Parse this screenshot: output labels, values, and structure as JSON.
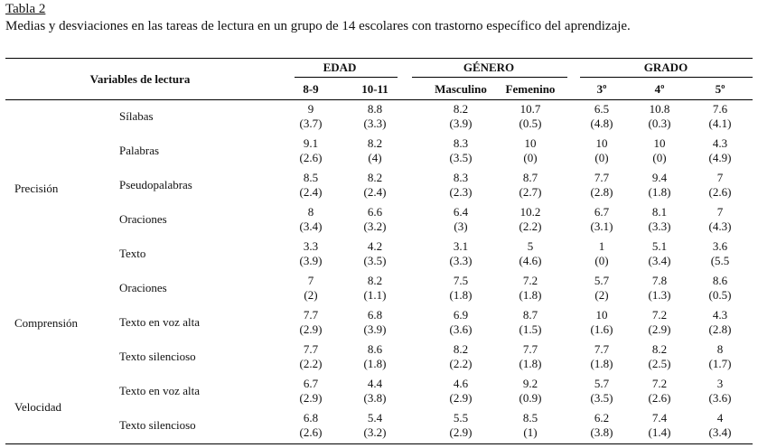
{
  "caption": {
    "label": "Tabla 2",
    "text": "Medias y desviaciones en las tareas de lectura en un grupo de 14 escolares con trastorno específico del aprendizaje."
  },
  "header": {
    "variables_label": "Variables de lectura",
    "groups": [
      "EDAD",
      "GÉNERO",
      "GRADO"
    ],
    "columns": [
      "8-9",
      "10-11",
      "Masculino",
      "Femenino",
      "3º",
      "4º",
      "5º"
    ]
  },
  "categories": [
    "Precisión",
    "Comprensión",
    "Velocidad"
  ],
  "rows": [
    {
      "label": "Sílabas",
      "cells": [
        [
          "9",
          "(3.7)"
        ],
        [
          "8.8",
          "(3.3)"
        ],
        [
          "8.2",
          "(3.9)"
        ],
        [
          "10.7",
          "(0.5)"
        ],
        [
          "6.5",
          "(4.8)"
        ],
        [
          "10.8",
          "(0.3)"
        ],
        [
          "7.6",
          "(4.1)"
        ]
      ]
    },
    {
      "label": "Palabras",
      "cells": [
        [
          "9.1",
          "(2.6)"
        ],
        [
          "8.2",
          "(4)"
        ],
        [
          "8.3",
          "(3.5)"
        ],
        [
          "10",
          "(0)"
        ],
        [
          "10",
          "(0)"
        ],
        [
          "10",
          "(0)"
        ],
        [
          "4.3",
          "(4.9)"
        ]
      ]
    },
    {
      "label": "Pseudopalabras",
      "cells": [
        [
          "8.5",
          "(2.4)"
        ],
        [
          "8.2",
          "(2.4)"
        ],
        [
          "8.3",
          "(2.3)"
        ],
        [
          "8.7",
          "(2.7)"
        ],
        [
          "7.7",
          "(2.8)"
        ],
        [
          "9.4",
          "(1.8)"
        ],
        [
          "7",
          "(2.6)"
        ]
      ]
    },
    {
      "label": "Oraciones",
      "cells": [
        [
          "8",
          "(3.4)"
        ],
        [
          "6.6",
          "(3.2)"
        ],
        [
          "6.4",
          "(3)"
        ],
        [
          "10.2",
          "(2.2)"
        ],
        [
          "6.7",
          "(3.1)"
        ],
        [
          "8.1",
          "(3.3)"
        ],
        [
          "7",
          "(4.3)"
        ]
      ]
    },
    {
      "label": "Texto",
      "cells": [
        [
          "3.3",
          "(3.9)"
        ],
        [
          "4.2",
          "(3.5)"
        ],
        [
          "3.1",
          "(3.3)"
        ],
        [
          "5",
          "(4.6)"
        ],
        [
          "1",
          "(0)"
        ],
        [
          "5.1",
          "(3.4)"
        ],
        [
          "3.6",
          "(5.5"
        ]
      ]
    },
    {
      "label": "Oraciones",
      "cells": [
        [
          "7",
          "(2)"
        ],
        [
          "8.2",
          "(1.1)"
        ],
        [
          "7.5",
          "(1.8)"
        ],
        [
          "7.2",
          "(1.8)"
        ],
        [
          "5.7",
          "(2)"
        ],
        [
          "7.8",
          "(1.3)"
        ],
        [
          "8.6",
          "(0.5)"
        ]
      ]
    },
    {
      "label": "Texto en voz alta",
      "cells": [
        [
          "7.7",
          "(2.9)"
        ],
        [
          "6.8",
          "(3.9)"
        ],
        [
          "6.9",
          "(3.6)"
        ],
        [
          "8.7",
          "(1.5)"
        ],
        [
          "10",
          "(1.6)"
        ],
        [
          "7.2",
          "(2.9)"
        ],
        [
          "4.3",
          "(2.8)"
        ]
      ]
    },
    {
      "label": "Texto silencioso",
      "cells": [
        [
          "7.7",
          "(2.2)"
        ],
        [
          "8.6",
          "(1.8)"
        ],
        [
          "8.2",
          "(2.2)"
        ],
        [
          "7.7",
          "(1.8)"
        ],
        [
          "7.7",
          "(1.8)"
        ],
        [
          "8.2",
          "(2.5)"
        ],
        [
          "8",
          "(1.7)"
        ]
      ]
    },
    {
      "label": "Texto en voz alta",
      "cells": [
        [
          "6.7",
          "(2.9)"
        ],
        [
          "4.4",
          "(3.8)"
        ],
        [
          "4.6",
          "(2.9)"
        ],
        [
          "9.2",
          "(0.9)"
        ],
        [
          "5.7",
          "(3.5)"
        ],
        [
          "7.2",
          "(2.6)"
        ],
        [
          "3",
          "(3.6)"
        ]
      ]
    },
    {
      "label": "Texto silencioso",
      "cells": [
        [
          "6.8",
          "(2.6)"
        ],
        [
          "5.4",
          "(3.2)"
        ],
        [
          "5.5",
          "(2.9)"
        ],
        [
          "8.5",
          "(1)"
        ],
        [
          "6.2",
          "(3.8)"
        ],
        [
          "7.4",
          "(1.4)"
        ],
        [
          "4",
          "(3.4)"
        ]
      ]
    }
  ]
}
